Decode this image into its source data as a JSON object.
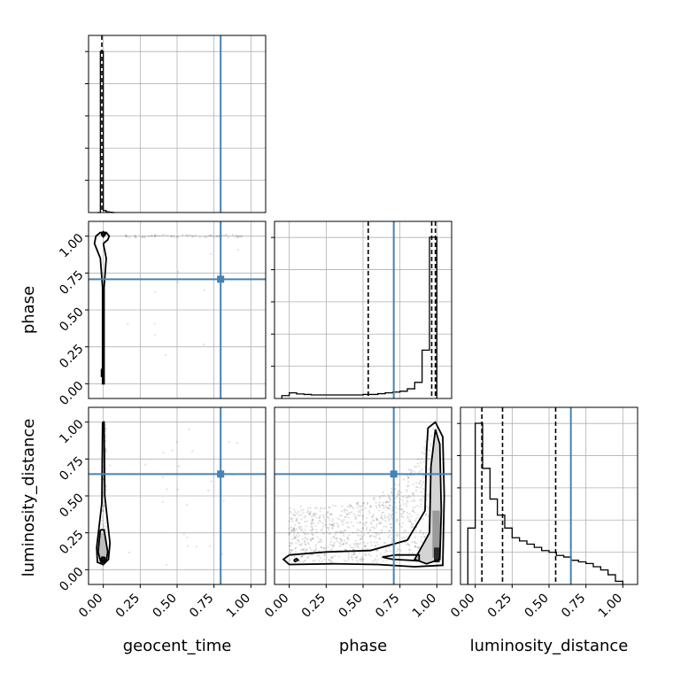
{
  "chart_data": {
    "type": "corner",
    "parameters": [
      "geocent_time",
      "phase",
      "luminosity_distance"
    ],
    "tick_values": [
      0.0,
      0.25,
      0.5,
      0.75,
      1.0
    ],
    "tick_labels": [
      "0.00",
      "0.25",
      "0.50",
      "0.75",
      "1.00"
    ],
    "axis_range": [
      -0.1,
      1.1
    ],
    "grid": true,
    "truth_color": "#4682b4",
    "truths": {
      "geocent_time": 0.795,
      "phase": 0.708,
      "luminosity_distance": 0.648
    },
    "quantiles": {
      "geocent_time": [
        -0.01
      ],
      "phase": [
        0.535,
        0.965,
        0.99
      ],
      "luminosity_distance": [
        0.045,
        0.185,
        0.545
      ]
    },
    "histograms": {
      "geocent_time": {
        "bin_edges": [
          -0.04,
          -0.02,
          0.0,
          0.02,
          0.04,
          0.06,
          0.08
        ],
        "counts": [
          0,
          1.0,
          0.012,
          0.004,
          0.002,
          0
        ]
      },
      "phase": {
        "bin_edges": [
          -0.05,
          0.0,
          0.05,
          0.1,
          0.15,
          0.2,
          0.25,
          0.3,
          0.35,
          0.4,
          0.45,
          0.5,
          0.55,
          0.6,
          0.65,
          0.7,
          0.75,
          0.8,
          0.85,
          0.9,
          0.95,
          1.0
        ],
        "counts": [
          0.018,
          0.035,
          0.028,
          0.025,
          0.022,
          0.022,
          0.022,
          0.022,
          0.022,
          0.022,
          0.022,
          0.025,
          0.025,
          0.03,
          0.035,
          0.04,
          0.045,
          0.06,
          0.1,
          0.3,
          1.0
        ]
      },
      "luminosity_distance": {
        "bin_edges": [
          -0.05,
          0.0,
          0.05,
          0.1,
          0.15,
          0.2,
          0.25,
          0.3,
          0.35,
          0.4,
          0.45,
          0.5,
          0.55,
          0.6,
          0.65,
          0.7,
          0.75,
          0.8,
          0.85,
          0.9,
          0.95,
          1.0
        ],
        "counts": [
          0.35,
          1.0,
          0.72,
          0.53,
          0.43,
          0.35,
          0.29,
          0.27,
          0.25,
          0.23,
          0.21,
          0.2,
          0.18,
          0.17,
          0.15,
          0.14,
          0.13,
          0.11,
          0.09,
          0.06,
          0.02
        ]
      }
    },
    "contours": {
      "phase_vs_geocent_time": [
        [
          [
            0.0,
            0.95
          ],
          [
            0.03,
            0.975
          ],
          [
            0.04,
            1.0
          ],
          [
            0.02,
            1.025
          ],
          [
            -0.02,
            1.025
          ],
          [
            -0.05,
            1.0
          ],
          [
            -0.06,
            0.95
          ],
          [
            -0.02,
            0.85
          ],
          [
            -0.005,
            0.65
          ],
          [
            -0.005,
            0.0
          ],
          [
            0.005,
            0.0
          ],
          [
            0.005,
            0.65
          ],
          [
            0.02,
            0.85
          ],
          [
            0.0,
            0.95
          ]
        ],
        [
          [
            -0.015,
            1.015
          ],
          [
            0.0,
            1.03
          ],
          [
            0.015,
            1.015
          ],
          [
            0.0,
            0.995
          ],
          [
            -0.015,
            1.015
          ]
        ],
        [
          [
            -0.012,
            0.1
          ],
          [
            -0.002,
            0.1
          ],
          [
            -0.002,
            0.05
          ],
          [
            -0.012,
            0.05
          ],
          [
            -0.012,
            0.1
          ]
        ]
      ],
      "luminosity_distance_vs_geocent_time": [
        [
          [
            -0.005,
            1.0
          ],
          [
            0.005,
            1.0
          ],
          [
            0.01,
            0.5
          ],
          [
            0.045,
            0.18
          ],
          [
            0.035,
            0.07
          ],
          [
            0.0,
            0.035
          ],
          [
            -0.04,
            0.05
          ],
          [
            -0.045,
            0.15
          ],
          [
            -0.01,
            0.45
          ],
          [
            -0.005,
            1.0
          ]
        ],
        [
          [
            -0.02,
            0.27
          ],
          [
            0.005,
            0.27
          ],
          [
            0.03,
            0.12
          ],
          [
            0.02,
            0.06
          ],
          [
            -0.02,
            0.06
          ],
          [
            -0.035,
            0.12
          ],
          [
            -0.02,
            0.27
          ]
        ],
        [
          [
            -0.015,
            0.08
          ],
          [
            0.01,
            0.08
          ],
          [
            0.01,
            0.05
          ],
          [
            -0.015,
            0.05
          ],
          [
            -0.015,
            0.08
          ]
        ]
      ],
      "luminosity_distance_vs_phase": [
        [
          [
            0.0,
            0.1
          ],
          [
            0.25,
            0.12
          ],
          [
            0.55,
            0.13
          ],
          [
            0.8,
            0.2
          ],
          [
            0.92,
            0.4
          ],
          [
            0.93,
            0.8
          ],
          [
            0.94,
            0.96
          ],
          [
            0.99,
            1.0
          ],
          [
            1.04,
            0.9
          ],
          [
            1.05,
            0.5
          ],
          [
            1.04,
            0.03
          ],
          [
            0.85,
            0.02
          ],
          [
            0.6,
            0.035
          ],
          [
            0.3,
            0.04
          ],
          [
            0.0,
            0.035
          ],
          [
            -0.04,
            0.07
          ],
          [
            0.0,
            0.1
          ]
        ],
        [
          [
            0.96,
            0.7
          ],
          [
            0.99,
            0.95
          ],
          [
            1.02,
            0.85
          ],
          [
            1.03,
            0.4
          ],
          [
            1.02,
            0.07
          ],
          [
            0.93,
            0.04
          ],
          [
            0.85,
            0.07
          ],
          [
            0.95,
            0.25
          ],
          [
            0.96,
            0.7
          ]
        ],
        [
          [
            0.63,
            0.085
          ],
          [
            0.72,
            0.1
          ],
          [
            0.88,
            0.1
          ],
          [
            0.88,
            0.06
          ],
          [
            0.7,
            0.07
          ],
          [
            0.63,
            0.085
          ]
        ],
        [
          [
            0.03,
            0.065
          ],
          [
            0.05,
            0.075
          ],
          [
            0.06,
            0.065
          ],
          [
            0.04,
            0.055
          ],
          [
            0.03,
            0.065
          ]
        ]
      ]
    },
    "fills": {
      "luminosity_distance_vs_geocent_time": [
        {
          "poly": [
            [
              -0.015,
              0.25
            ],
            [
              0.002,
              0.25
            ],
            [
              0.025,
              0.12
            ],
            [
              0.015,
              0.06
            ],
            [
              -0.015,
              0.06
            ],
            [
              -0.03,
              0.12
            ],
            [
              -0.015,
              0.25
            ]
          ],
          "color": "#bdbdbd"
        },
        {
          "poly": [
            [
              -0.015,
              0.09
            ],
            [
              0.01,
              0.09
            ],
            [
              0.01,
              0.05
            ],
            [
              -0.015,
              0.05
            ],
            [
              -0.015,
              0.09
            ]
          ],
          "color": "#1a1a1a"
        }
      ],
      "luminosity_distance_vs_phase": [
        {
          "poly": [
            [
              0.96,
              0.7
            ],
            [
              0.99,
              0.95
            ],
            [
              1.02,
              0.85
            ],
            [
              1.03,
              0.4
            ],
            [
              1.02,
              0.07
            ],
            [
              0.93,
              0.04
            ],
            [
              0.85,
              0.07
            ],
            [
              0.95,
              0.25
            ],
            [
              0.96,
              0.7
            ]
          ],
          "color": "#d4d4d4"
        },
        {
          "poly": [
            [
              0.97,
              0.4
            ],
            [
              1.02,
              0.4
            ],
            [
              1.025,
              0.1
            ],
            [
              0.97,
              0.08
            ],
            [
              0.97,
              0.4
            ]
          ],
          "color": "#9a9a9a"
        },
        {
          "poly": [
            [
              0.98,
              0.15
            ],
            [
              1.02,
              0.15
            ],
            [
              1.02,
              0.05
            ],
            [
              0.98,
              0.05
            ],
            [
              0.98,
              0.15
            ]
          ],
          "color": "#2a2a2a"
        }
      ],
      "phase_vs_geocent_time": [
        {
          "poly": [
            [
              -0.015,
              1.015
            ],
            [
              0.0,
              1.03
            ],
            [
              0.015,
              1.015
            ],
            [
              0.0,
              0.995
            ],
            [
              -0.015,
              1.015
            ]
          ],
          "color": "#111111"
        }
      ]
    }
  }
}
